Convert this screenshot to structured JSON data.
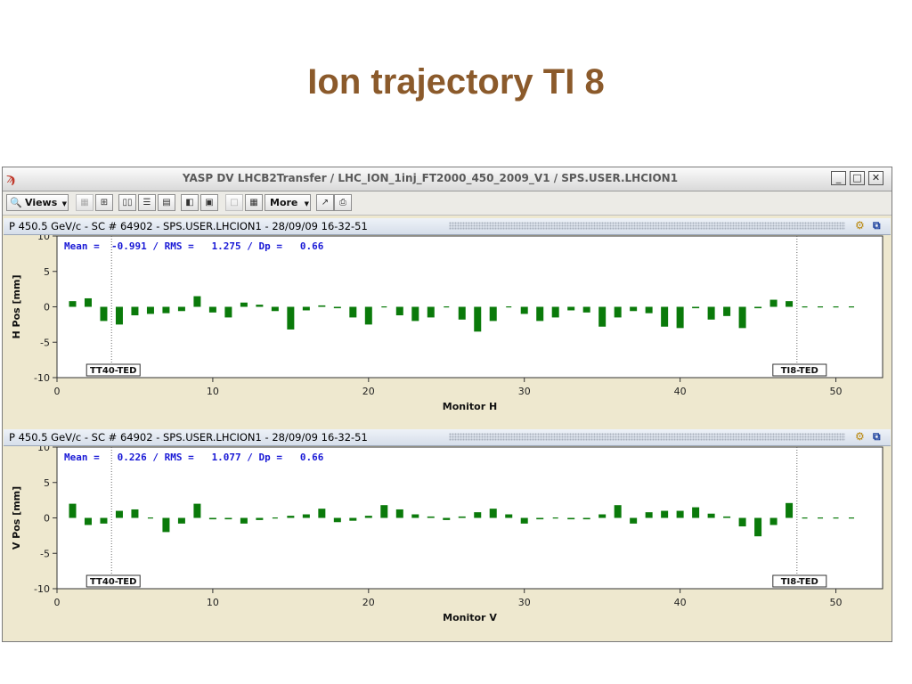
{
  "slide": {
    "title": "Ion trajectory TI 8"
  },
  "window": {
    "title": "YASP DV LHCB2Transfer / LHC_ION_1inj_FT2000_450_2009_V1 / SPS.USER.LHCION1",
    "buttons": {
      "minimize": "_",
      "maximize": "□",
      "close": "✕"
    }
  },
  "toolbar": {
    "views_label": "Views",
    "more_label": "More"
  },
  "panels": [
    {
      "header": "P 450.5 GeV/c - SC # 64902 - SPS.USER.LHCION1 - 28/09/09 16-32-51",
      "stats": "Mean =  -0.991 / RMS =   1.275 / Dp =   0.66",
      "ylabel": "H Pos [mm]",
      "xlabel": "Monitor H",
      "markers": {
        "left": "TT40-TED",
        "right": "TI8-TED"
      },
      "color": "#0a7a0a",
      "chart_data": {
        "type": "bar",
        "x": [
          1,
          2,
          3,
          4,
          5,
          6,
          7,
          8,
          9,
          10,
          11,
          12,
          13,
          14,
          15,
          16,
          17,
          18,
          19,
          20,
          21,
          22,
          23,
          24,
          25,
          26,
          27,
          28,
          29,
          30,
          31,
          32,
          33,
          34,
          35,
          36,
          37,
          38,
          39,
          40,
          41,
          42,
          43,
          44,
          45,
          46,
          47,
          48,
          49,
          50,
          51
        ],
        "values": [
          0.8,
          1.2,
          -2.0,
          -2.5,
          -1.2,
          -1.0,
          -0.9,
          -0.6,
          1.5,
          -0.8,
          -1.5,
          0.6,
          0.3,
          -0.6,
          -3.2,
          -0.5,
          0.2,
          -0.2,
          -1.5,
          -2.5,
          0.0,
          -1.2,
          -2.0,
          -1.5,
          0.0,
          -1.8,
          -3.5,
          -2.0,
          0.0,
          -1.0,
          -2.0,
          -1.5,
          -0.5,
          -0.8,
          -2.8,
          -1.5,
          -0.6,
          -0.9,
          -2.8,
          -3.0,
          -0.2,
          -1.8,
          -1.3,
          -3.0,
          -0.2,
          1.0,
          0.8,
          0.0,
          0.0,
          0.0,
          0.0
        ],
        "xlim": [
          0,
          53
        ],
        "ylim": [
          -10,
          10
        ],
        "xticks": [
          0,
          10,
          20,
          30,
          40,
          50
        ],
        "yticks": [
          10,
          5,
          0,
          -5,
          -10
        ],
        "marker_x": [
          3.5,
          47.5
        ]
      }
    },
    {
      "header": "P 450.5 GeV/c - SC # 64902 - SPS.USER.LHCION1 - 28/09/09 16-32-51",
      "stats": "Mean =   0.226 / RMS =   1.077 / Dp =   0.66",
      "ylabel": "V Pos [mm]",
      "xlabel": "Monitor V",
      "markers": {
        "left": "TT40-TED",
        "right": "TI8-TED"
      },
      "color": "#0a7a0a",
      "chart_data": {
        "type": "bar",
        "x": [
          1,
          2,
          3,
          4,
          5,
          6,
          7,
          8,
          9,
          10,
          11,
          12,
          13,
          14,
          15,
          16,
          17,
          18,
          19,
          20,
          21,
          22,
          23,
          24,
          25,
          26,
          27,
          28,
          29,
          30,
          31,
          32,
          33,
          34,
          35,
          36,
          37,
          38,
          39,
          40,
          41,
          42,
          43,
          44,
          45,
          46,
          47,
          48,
          49,
          50,
          51
        ],
        "values": [
          2.0,
          -1.0,
          -0.8,
          1.0,
          1.2,
          0.0,
          -2.0,
          -0.8,
          2.0,
          -0.2,
          -0.2,
          -0.8,
          -0.3,
          0.0,
          0.3,
          0.5,
          1.3,
          -0.6,
          -0.4,
          0.3,
          1.8,
          1.2,
          0.5,
          0.2,
          -0.3,
          0.2,
          0.8,
          1.3,
          0.5,
          -0.8,
          -0.2,
          0.0,
          -0.2,
          -0.2,
          0.5,
          1.8,
          -0.8,
          0.8,
          1.0,
          1.0,
          1.5,
          0.6,
          0.2,
          -1.2,
          -2.6,
          -1.0,
          2.1,
          0.0,
          0.0,
          0.0,
          0.0
        ],
        "xlim": [
          0,
          53
        ],
        "ylim": [
          -10,
          10
        ],
        "xticks": [
          0,
          10,
          20,
          30,
          40,
          50
        ],
        "yticks": [
          10,
          5,
          0,
          -5,
          -10
        ],
        "marker_x": [
          3.5,
          47.5
        ]
      }
    }
  ]
}
